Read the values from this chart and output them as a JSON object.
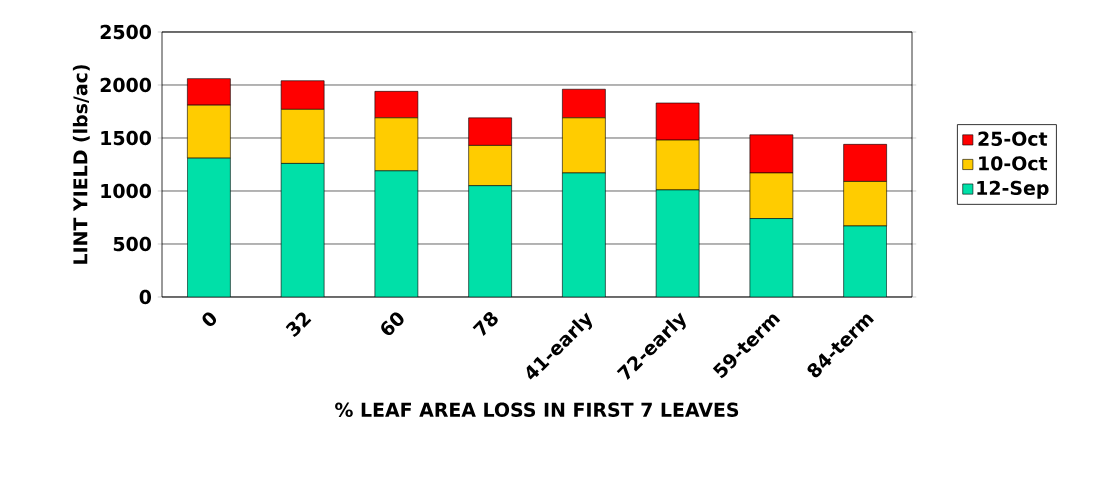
{
  "chart_data": {
    "type": "bar",
    "stacked": true,
    "xlabel": "% LEAF AREA LOSS IN FIRST 7 LEAVES",
    "ylabel": "LINT YIELD (lbs/ac)",
    "categories": [
      "0",
      "32",
      "60",
      "78",
      "41-early",
      "72-early",
      "59-term",
      "84-term"
    ],
    "series": [
      {
        "name": "12-Sep",
        "color": "#00e0a8",
        "values": [
          1310,
          1260,
          1190,
          1050,
          1170,
          1010,
          740,
          670
        ]
      },
      {
        "name": "10-Oct",
        "color": "#ffcc00",
        "values": [
          500,
          510,
          500,
          380,
          520,
          470,
          430,
          420
        ]
      },
      {
        "name": "25-Oct",
        "color": "#ff0000",
        "values": [
          250,
          270,
          250,
          260,
          270,
          350,
          360,
          350
        ]
      }
    ],
    "ylim": [
      0,
      2500
    ],
    "yticks": [
      0,
      500,
      1000,
      1500,
      2000,
      2500
    ],
    "grid": "y",
    "legend": "right"
  }
}
